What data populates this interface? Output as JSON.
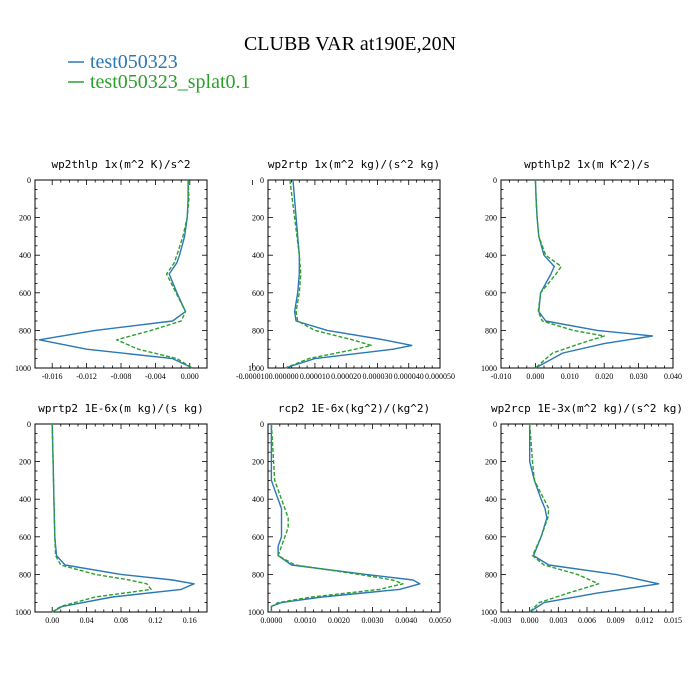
{
  "title": "CLUBB VAR at190E,20N",
  "legend": [
    {
      "label": "test050323",
      "color": "#2a78b5",
      "style": "solid"
    },
    {
      "label": "test050323_splat0.1",
      "color": "#2ca02c",
      "style": "dashed"
    }
  ],
  "chart_data": [
    {
      "type": "line",
      "title": "wp2thlp  1x(m^2 K)/s^2",
      "xlim": [
        -0.018,
        0.002
      ],
      "ylim": [
        1000,
        0
      ],
      "xticks": [
        -0.016,
        -0.012,
        -0.008,
        -0.004,
        0.0
      ],
      "xtick_labels": [
        "-0.016",
        "-0.012",
        "-0.008",
        "-0.004",
        "0.000"
      ],
      "yticks": [
        0,
        200,
        400,
        600,
        800,
        1000
      ],
      "y": [
        0,
        100,
        200,
        300,
        400,
        440,
        500,
        600,
        700,
        750,
        800,
        850,
        900,
        950,
        1000
      ],
      "series": [
        {
          "name": "test050323",
          "x": [
            -0.0002,
            -0.0002,
            -0.0003,
            -0.0006,
            -0.0012,
            -0.0015,
            -0.0024,
            -0.0015,
            -0.0005,
            -0.002,
            -0.011,
            -0.0175,
            -0.012,
            -0.002,
            0.0003
          ]
        },
        {
          "name": "test050323_splat0.1",
          "x": [
            -0.0002,
            -0.0001,
            -0.0003,
            -0.0008,
            -0.0015,
            -0.0018,
            -0.0027,
            -0.0016,
            -0.0005,
            -0.001,
            -0.0045,
            -0.0085,
            -0.006,
            -0.0015,
            0.0003
          ]
        }
      ]
    },
    {
      "type": "line",
      "title": "wp2rtp  1x(m^2 kg)/(s^2 kg)",
      "xlim": [
        -5e-06,
        5e-05
      ],
      "ylim": [
        1000,
        0
      ],
      "xticks": [
        -1e-05,
        0.0,
        1e-05,
        2e-05,
        3e-05,
        4e-05,
        5e-05
      ],
      "xtick_labels": [
        "-0.000010",
        "0.000000",
        "0.000010",
        "0.000020",
        "0.000030",
        "0.000040",
        "0.000050"
      ],
      "yticks": [
        0,
        200,
        400,
        600,
        800,
        1000
      ],
      "y": [
        0,
        200,
        400,
        500,
        600,
        700,
        750,
        800,
        850,
        880,
        900,
        950,
        1000
      ],
      "series": [
        {
          "name": "test050323",
          "x": [
            3e-06,
            4e-06,
            5e-06,
            5e-06,
            4.5e-06,
            3.5e-06,
            4e-06,
            1.4e-05,
            3.2e-05,
            4.1e-05,
            3.5e-05,
            1e-05,
            5e-07
          ]
        },
        {
          "name": "test050323_splat0.1",
          "x": [
            2e-06,
            3.5e-06,
            5e-06,
            5.5e-06,
            5e-06,
            4e-06,
            4.5e-06,
            1e-05,
            2.2e-05,
            2.8e-05,
            2.3e-05,
            8e-06,
            5e-07
          ]
        }
      ]
    },
    {
      "type": "line",
      "title": "wpthlp2  1x(m K^2)/s",
      "xlim": [
        -0.01,
        0.04
      ],
      "ylim": [
        1000,
        0
      ],
      "xticks": [
        -0.01,
        0.0,
        0.01,
        0.02,
        0.03,
        0.04
      ],
      "xtick_labels": [
        "-0.010",
        "0.000",
        "0.010",
        "0.020",
        "0.030",
        "0.040"
      ],
      "yticks": [
        0,
        200,
        400,
        600,
        800,
        1000
      ],
      "y": [
        0,
        100,
        200,
        300,
        400,
        460,
        500,
        600,
        700,
        750,
        800,
        830,
        870,
        920,
        1000
      ],
      "series": [
        {
          "name": "test050323",
          "x": [
            0.0,
            0.0002,
            0.0005,
            0.001,
            0.0025,
            0.0055,
            0.0045,
            0.0015,
            0.001,
            0.003,
            0.018,
            0.034,
            0.02,
            0.008,
            0.0
          ]
        },
        {
          "name": "test050323_splat0.1",
          "x": [
            0.0,
            0.0002,
            0.0005,
            0.001,
            0.003,
            0.0075,
            0.006,
            0.0015,
            0.0008,
            0.002,
            0.011,
            0.02,
            0.013,
            0.005,
            0.0
          ]
        }
      ]
    },
    {
      "type": "line",
      "title": "wprtp2  1E-6x(m kg)/(s kg)",
      "xlim": [
        -0.02,
        0.18
      ],
      "ylim": [
        1000,
        0
      ],
      "xticks": [
        0.0,
        0.04,
        0.08,
        0.12,
        0.16
      ],
      "xtick_labels": [
        "0.00",
        "0.04",
        "0.08",
        "0.12",
        "0.16"
      ],
      "yticks": [
        0,
        200,
        400,
        600,
        800,
        1000
      ],
      "y": [
        0,
        200,
        400,
        600,
        700,
        750,
        800,
        830,
        850,
        880,
        920,
        970,
        1000
      ],
      "series": [
        {
          "name": "test050323",
          "x": [
            0.0,
            0.001,
            0.002,
            0.003,
            0.005,
            0.015,
            0.08,
            0.14,
            0.165,
            0.15,
            0.07,
            0.012,
            0.0
          ]
        },
        {
          "name": "test050323_splat0.1",
          "x": [
            0.0,
            0.001,
            0.002,
            0.003,
            0.004,
            0.01,
            0.05,
            0.09,
            0.11,
            0.115,
            0.05,
            0.01,
            0.0
          ]
        }
      ]
    },
    {
      "type": "line",
      "title": "rcp2  1E-6x(kg^2)/(kg^2)",
      "xlim": [
        -0.0001,
        0.005
      ],
      "ylim": [
        1000,
        0
      ],
      "xticks": [
        0.0,
        0.001,
        0.002,
        0.003,
        0.004,
        0.005
      ],
      "xtick_labels": [
        "0.0000",
        "0.0010",
        "0.0020",
        "0.0030",
        "0.0040",
        "0.0050"
      ],
      "yticks": [
        0,
        200,
        400,
        600,
        800,
        1000
      ],
      "y": [
        0,
        300,
        350,
        400,
        450,
        500,
        550,
        600,
        650,
        700,
        750,
        800,
        830,
        850,
        880,
        920,
        950,
        970,
        1000
      ],
      "series": [
        {
          "name": "test050323",
          "x": [
            0.0,
            0.0,
            0.0001,
            0.0002,
            0.0003,
            0.0003,
            0.0003,
            0.0003,
            0.0002,
            0.0002,
            0.0006,
            0.0028,
            0.0042,
            0.0044,
            0.0038,
            0.0015,
            0.0003,
            0.0,
            0.0
          ]
        },
        {
          "name": "test050323_splat0.1",
          "x": [
            0.0,
            0.0001,
            0.0002,
            0.0003,
            0.0004,
            0.0005,
            0.0005,
            0.0004,
            0.0003,
            0.0002,
            0.0007,
            0.0026,
            0.0036,
            0.0039,
            0.0032,
            0.0012,
            0.0002,
            0.0,
            0.0
          ]
        }
      ]
    },
    {
      "type": "line",
      "title": "wp2rcp  1E-3x(m^2 kg)/(s^2 kg)",
      "xlim": [
        -0.003,
        0.015
      ],
      "ylim": [
        1000,
        0
      ],
      "xticks": [
        -0.003,
        0.0,
        0.003,
        0.006,
        0.009,
        0.012,
        0.015
      ],
      "xtick_labels": [
        "-0.003",
        "0.000",
        "0.003",
        "0.006",
        "0.009",
        "0.012",
        "0.015"
      ],
      "yticks": [
        0,
        200,
        400,
        600,
        800,
        1000
      ],
      "y": [
        0,
        200,
        300,
        400,
        450,
        500,
        600,
        700,
        750,
        800,
        850,
        900,
        950,
        1000
      ],
      "series": [
        {
          "name": "test050323",
          "x": [
            0.0,
            0.0,
            0.0005,
            0.0012,
            0.0016,
            0.0018,
            0.0012,
            0.0004,
            0.002,
            0.009,
            0.0135,
            0.007,
            0.0015,
            0.0
          ]
        },
        {
          "name": "test050323_splat0.1",
          "x": [
            0.0,
            0.0003,
            0.0005,
            0.0015,
            0.002,
            0.0019,
            0.0012,
            0.0003,
            0.0015,
            0.005,
            0.0072,
            0.004,
            0.001,
            0.0
          ]
        }
      ]
    }
  ]
}
